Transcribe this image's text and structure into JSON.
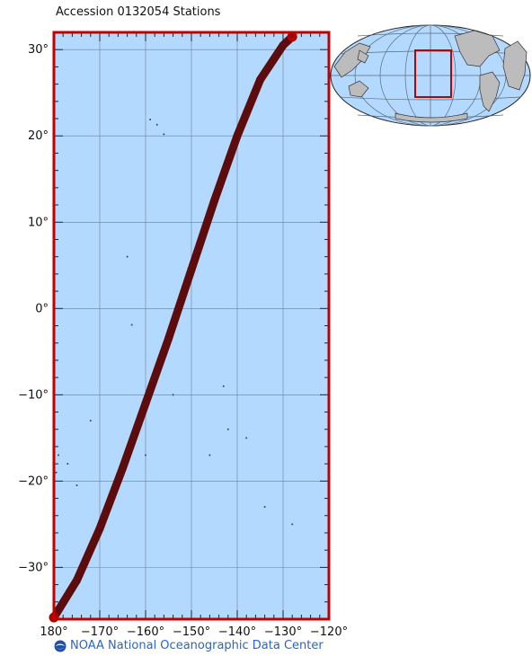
{
  "title": "Accession 0132054 Stations",
  "credit": "NOAA National Oceanographic Data Center",
  "map": {
    "lon_range": [
      180,
      240
    ],
    "lat_range": [
      -36,
      32
    ],
    "lat_ticks": [
      {
        "value": 30,
        "label": "30°"
      },
      {
        "value": 20,
        "label": "20°"
      },
      {
        "value": 10,
        "label": "10°"
      },
      {
        "value": 0,
        "label": "0°"
      },
      {
        "value": -10,
        "label": "−10°"
      },
      {
        "value": -20,
        "label": "−20°"
      },
      {
        "value": -30,
        "label": "−30°"
      }
    ],
    "lon_ticks": [
      {
        "value": 180,
        "label": "180°"
      },
      {
        "value": 190,
        "label": "−170°"
      },
      {
        "value": 200,
        "label": "−160°"
      },
      {
        "value": 210,
        "label": "−150°"
      },
      {
        "value": 220,
        "label": "−140°"
      },
      {
        "value": 230,
        "label": "−130°"
      },
      {
        "value": 240,
        "label": "−120°"
      }
    ],
    "colors": {
      "ocean": "#b4d9ff",
      "frame": "#c00000",
      "track": "#5c0c0c",
      "grid": "#6f7f8f",
      "land": "#bcbcbc"
    },
    "station_track": [
      {
        "lon": 180.0,
        "lat": -35.8
      },
      {
        "lon": 185.0,
        "lat": -31.5
      },
      {
        "lon": 190.0,
        "lat": -25.5
      },
      {
        "lon": 195.0,
        "lat": -18.5
      },
      {
        "lon": 200.0,
        "lat": -11.0
      },
      {
        "lon": 205.0,
        "lat": -3.5
      },
      {
        "lon": 210.0,
        "lat": 4.5
      },
      {
        "lon": 215.0,
        "lat": 12.5
      },
      {
        "lon": 220.0,
        "lat": 20.0
      },
      {
        "lon": 225.0,
        "lat": 26.5
      },
      {
        "lon": 230.0,
        "lat": 30.5
      },
      {
        "lon": 232.0,
        "lat": 31.5
      }
    ]
  }
}
